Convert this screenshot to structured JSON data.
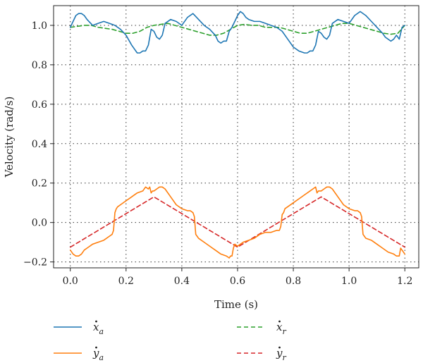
{
  "chart_data": {
    "type": "line",
    "title": "",
    "xlabel": "Time (s)",
    "ylabel": "Velocity (rad/s)",
    "xlim": [
      -0.06,
      1.25
    ],
    "ylim": [
      -0.23,
      1.1
    ],
    "xticks": [
      0.0,
      0.2,
      0.4,
      0.6,
      0.8,
      1.0,
      1.2
    ],
    "xtick_labels": [
      "0.0",
      "0.2",
      "0.4",
      "0.6",
      "0.8",
      "1.0",
      "1.2"
    ],
    "yticks": [
      -0.2,
      0.0,
      0.2,
      0.4,
      0.6,
      0.8,
      1.0
    ],
    "ytick_labels": [
      "−0.2",
      "0.0",
      "0.2",
      "0.4",
      "0.6",
      "0.8",
      "1.0"
    ],
    "grid": true,
    "grid_style": "dotted",
    "legend_position": "bottom",
    "series": [
      {
        "key": "xa",
        "name": "ẋ_a",
        "color": "#1f77b4",
        "dash": "solid",
        "x": [
          0.0,
          0.01,
          0.02,
          0.03,
          0.04,
          0.05,
          0.06,
          0.08,
          0.1,
          0.12,
          0.14,
          0.16,
          0.18,
          0.2,
          0.22,
          0.24,
          0.25,
          0.26,
          0.27,
          0.28,
          0.29,
          0.3,
          0.31,
          0.32,
          0.33,
          0.34,
          0.36,
          0.38,
          0.4,
          0.42,
          0.44,
          0.46,
          0.48,
          0.5,
          0.52,
          0.53,
          0.54,
          0.55,
          0.56,
          0.57,
          0.58,
          0.59,
          0.6,
          0.61,
          0.62,
          0.63,
          0.64,
          0.66,
          0.68,
          0.7,
          0.72,
          0.74,
          0.76,
          0.78,
          0.8,
          0.82,
          0.84,
          0.85,
          0.86,
          0.87,
          0.88,
          0.89,
          0.9,
          0.91,
          0.92,
          0.93,
          0.94,
          0.96,
          0.98,
          1.0,
          1.02,
          1.04,
          1.06,
          1.08,
          1.1,
          1.12,
          1.13,
          1.14,
          1.15,
          1.16,
          1.17,
          1.18,
          1.19,
          1.2
        ],
        "y": [
          0.99,
          1.02,
          1.05,
          1.06,
          1.06,
          1.05,
          1.03,
          1.0,
          1.01,
          1.02,
          1.01,
          1.0,
          0.98,
          0.95,
          0.9,
          0.86,
          0.86,
          0.87,
          0.87,
          0.9,
          0.98,
          0.97,
          0.94,
          0.93,
          0.95,
          1.01,
          1.03,
          1.02,
          1.0,
          1.04,
          1.06,
          1.03,
          1.0,
          0.98,
          0.95,
          0.92,
          0.91,
          0.92,
          0.92,
          0.97,
          0.99,
          1.02,
          1.05,
          1.07,
          1.06,
          1.04,
          1.03,
          1.02,
          1.02,
          1.01,
          1.0,
          0.99,
          0.97,
          0.93,
          0.89,
          0.87,
          0.86,
          0.86,
          0.87,
          0.87,
          0.9,
          0.97,
          0.96,
          0.94,
          0.93,
          0.95,
          1.01,
          1.03,
          1.02,
          1.01,
          1.05,
          1.07,
          1.05,
          1.02,
          0.99,
          0.96,
          0.94,
          0.93,
          0.92,
          0.93,
          0.95,
          0.93,
          0.99,
          1.0
        ]
      },
      {
        "key": "ya",
        "name": "ẏ_a",
        "color": "#ff7f0e",
        "dash": "solid",
        "x": [
          0.0,
          0.01,
          0.02,
          0.03,
          0.04,
          0.05,
          0.06,
          0.08,
          0.1,
          0.12,
          0.14,
          0.15,
          0.155,
          0.16,
          0.165,
          0.17,
          0.18,
          0.2,
          0.22,
          0.24,
          0.26,
          0.27,
          0.28,
          0.285,
          0.29,
          0.295,
          0.3,
          0.31,
          0.32,
          0.33,
          0.34,
          0.36,
          0.38,
          0.4,
          0.42,
          0.43,
          0.44,
          0.445,
          0.45,
          0.455,
          0.46,
          0.48,
          0.5,
          0.52,
          0.54,
          0.56,
          0.57,
          0.575,
          0.58,
          0.585,
          0.59,
          0.6,
          0.61,
          0.62,
          0.64,
          0.66,
          0.68,
          0.7,
          0.72,
          0.74,
          0.75,
          0.755,
          0.76,
          0.765,
          0.77,
          0.78,
          0.8,
          0.82,
          0.84,
          0.86,
          0.87,
          0.88,
          0.885,
          0.89,
          0.895,
          0.9,
          0.91,
          0.92,
          0.93,
          0.94,
          0.96,
          0.98,
          1.0,
          1.02,
          1.03,
          1.04,
          1.045,
          1.05,
          1.055,
          1.06,
          1.08,
          1.1,
          1.12,
          1.14,
          1.16,
          1.17,
          1.18,
          1.185,
          1.19,
          1.2
        ],
        "y": [
          -0.14,
          -0.16,
          -0.17,
          -0.17,
          -0.16,
          -0.14,
          -0.13,
          -0.11,
          -0.1,
          -0.09,
          -0.07,
          -0.06,
          -0.04,
          0.05,
          0.07,
          0.08,
          0.09,
          0.11,
          0.13,
          0.15,
          0.16,
          0.18,
          0.17,
          0.18,
          0.15,
          0.16,
          0.16,
          0.17,
          0.18,
          0.18,
          0.17,
          0.13,
          0.09,
          0.07,
          0.06,
          0.06,
          0.05,
          0.03,
          -0.06,
          -0.07,
          -0.08,
          -0.1,
          -0.12,
          -0.14,
          -0.16,
          -0.17,
          -0.18,
          -0.17,
          -0.17,
          -0.13,
          -0.11,
          -0.12,
          -0.11,
          -0.1,
          -0.09,
          -0.08,
          -0.06,
          -0.05,
          -0.05,
          -0.04,
          -0.04,
          -0.02,
          0.04,
          0.05,
          0.07,
          0.08,
          0.1,
          0.12,
          0.14,
          0.16,
          0.17,
          0.18,
          0.15,
          0.16,
          0.16,
          0.16,
          0.17,
          0.18,
          0.18,
          0.17,
          0.13,
          0.09,
          0.07,
          0.06,
          0.06,
          0.05,
          0.03,
          -0.06,
          -0.07,
          -0.08,
          -0.09,
          -0.11,
          -0.13,
          -0.15,
          -0.16,
          -0.17,
          -0.17,
          -0.13,
          -0.14,
          -0.16
        ]
      },
      {
        "key": "xr",
        "name": "ẋ_r",
        "color": "#2ca02c",
        "dash": "dashed",
        "x": [
          0.0,
          0.025,
          0.05,
          0.075,
          0.1,
          0.125,
          0.15,
          0.175,
          0.2,
          0.225,
          0.25,
          0.275,
          0.3,
          0.325,
          0.35,
          0.375,
          0.4,
          0.425,
          0.45,
          0.475,
          0.5,
          0.525,
          0.55,
          0.575,
          0.6,
          0.625,
          0.65,
          0.675,
          0.7,
          0.725,
          0.75,
          0.775,
          0.8,
          0.825,
          0.85,
          0.875,
          0.9,
          0.925,
          0.95,
          0.975,
          1.0,
          1.025,
          1.05,
          1.075,
          1.1,
          1.125,
          1.15,
          1.175,
          1.2
        ],
        "y": [
          0.99,
          0.995,
          1.0,
          1.0,
          0.99,
          0.985,
          0.98,
          0.97,
          0.96,
          0.96,
          0.97,
          0.99,
          1.0,
          1.005,
          1.01,
          1.0,
          0.99,
          0.98,
          0.97,
          0.96,
          0.95,
          0.95,
          0.96,
          0.98,
          1.0,
          1.005,
          1.0,
          1.0,
          0.99,
          0.99,
          0.99,
          0.98,
          0.97,
          0.96,
          0.96,
          0.97,
          0.98,
          0.99,
          1.0,
          1.01,
          1.01,
          1.0,
          0.99,
          0.98,
          0.97,
          0.96,
          0.955,
          0.96,
          1.0
        ]
      },
      {
        "key": "yr",
        "name": "ẏ_r",
        "color": "#d62728",
        "dash": "dashed",
        "x": [
          0.0,
          0.3,
          0.6,
          0.9,
          1.2
        ],
        "y": [
          -0.125,
          0.13,
          -0.125,
          0.13,
          -0.125
        ]
      }
    ],
    "legend_items": [
      {
        "key": "xa",
        "base": "x",
        "sub": "a",
        "color": "#1f77b4",
        "dash": "solid"
      },
      {
        "key": "xr",
        "base": "x",
        "sub": "r",
        "color": "#2ca02c",
        "dash": "dashed"
      },
      {
        "key": "ya",
        "base": "y",
        "sub": "a",
        "color": "#ff7f0e",
        "dash": "solid"
      },
      {
        "key": "yr",
        "base": "y",
        "sub": "r",
        "color": "#d62728",
        "dash": "dashed"
      }
    ]
  }
}
